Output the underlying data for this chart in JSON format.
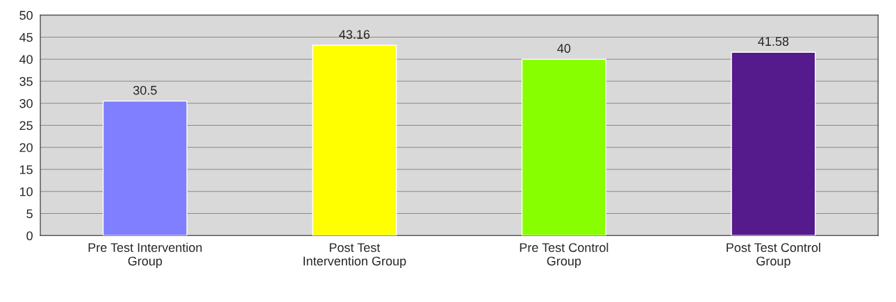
{
  "chart_data": {
    "type": "bar",
    "categories": [
      "Pre Test Intervention\nGroup",
      "Post Test\nIntervention Group",
      "Pre Test Control\nGroup",
      "Post Test Control\nGroup"
    ],
    "values": [
      30.5,
      43.16,
      40,
      41.58
    ],
    "colors": [
      "#7f7fff",
      "#ffff00",
      "#88ff00",
      "#551a8b"
    ],
    "ylim": [
      0,
      50
    ],
    "yticks": [
      0,
      5,
      10,
      15,
      20,
      25,
      30,
      35,
      40,
      45,
      50
    ],
    "grid": "y",
    "data_labels": true,
    "legend": false
  }
}
